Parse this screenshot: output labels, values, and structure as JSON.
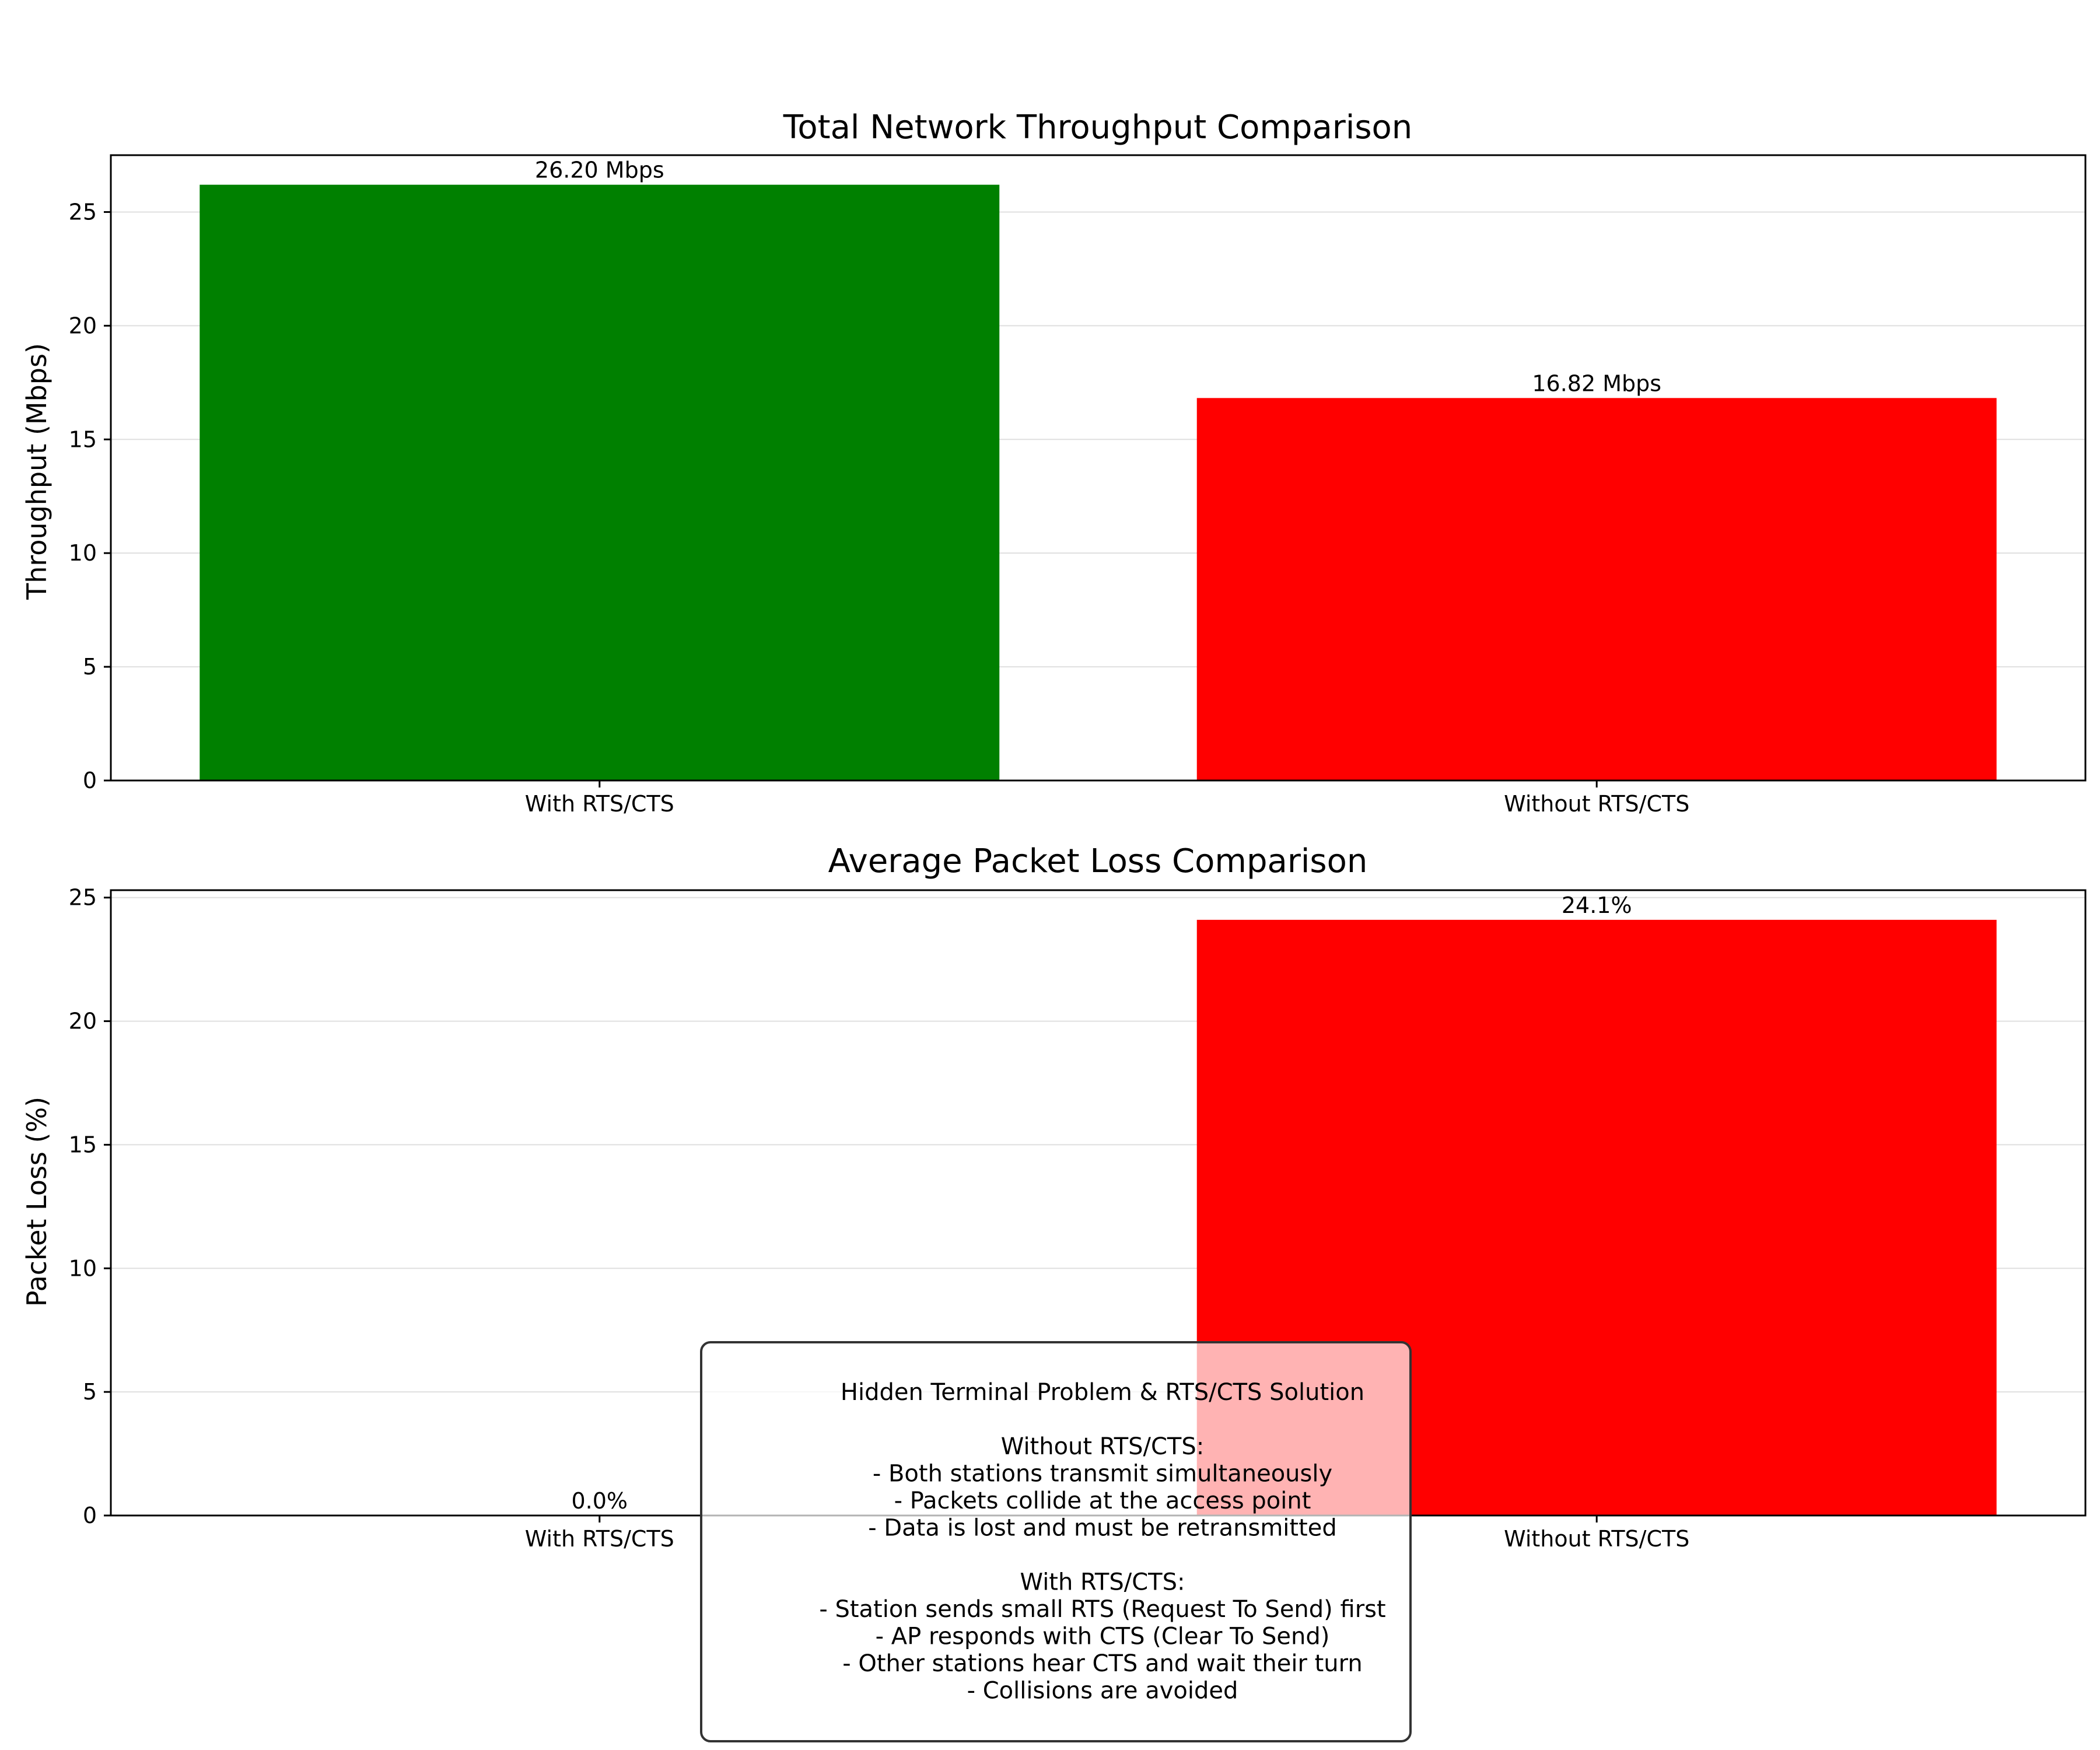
{
  "chart_data": [
    {
      "type": "bar",
      "title": "Total Network Throughput Comparison",
      "xlabel": "",
      "ylabel": "Throughput (Mbps)",
      "categories": [
        "With RTS/CTS",
        "Without RTS/CTS"
      ],
      "values": [
        26.2,
        16.82
      ],
      "bar_labels": [
        "26.20 Mbps",
        "16.82 Mbps"
      ],
      "colors": [
        "#008000",
        "#ff0000"
      ],
      "ylim": [
        0,
        27.5
      ],
      "yticks": [
        0,
        5,
        10,
        15,
        20,
        25
      ],
      "grid": "y"
    },
    {
      "type": "bar",
      "title": "Average Packet Loss Comparison",
      "xlabel": "",
      "ylabel": "Packet Loss (%)",
      "categories": [
        "With RTS/CTS",
        "Without RTS/CTS"
      ],
      "values": [
        0.0,
        24.1
      ],
      "bar_labels": [
        "0.0%",
        "24.1%"
      ],
      "colors": [
        "#008000",
        "#ff0000"
      ],
      "ylim": [
        0,
        25.3
      ],
      "yticks": [
        0,
        5,
        10,
        15,
        20,
        25
      ],
      "grid": "y"
    }
  ],
  "annotation": {
    "lines": [
      "Hidden Terminal Problem & RTS/CTS Solution",
      "",
      "Without RTS/CTS:",
      "- Both stations transmit simultaneously",
      "- Packets collide at the access point",
      "- Data is lost and must be retransmitted",
      "",
      "With RTS/CTS:",
      "- Station sends small RTS (Request To Send) first",
      "- AP responds with CTS (Clear To Send)",
      "- Other stations hear CTS and wait their turn",
      "- Collisions are avoided"
    ]
  }
}
